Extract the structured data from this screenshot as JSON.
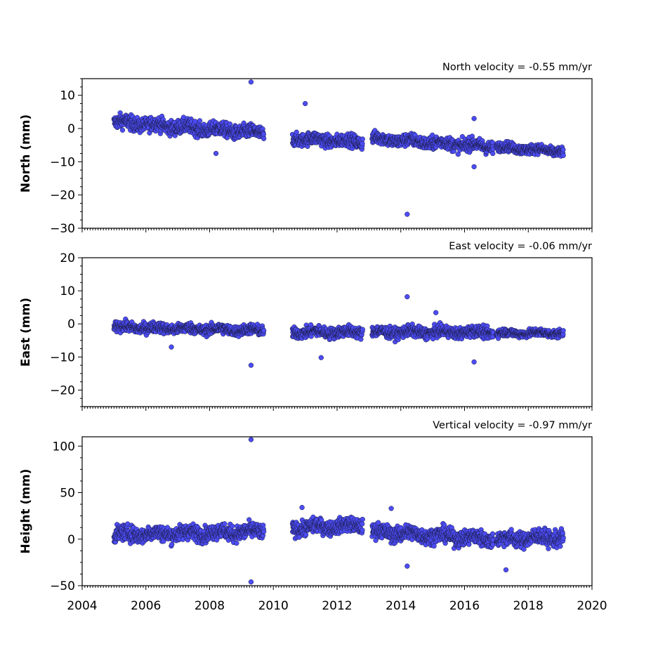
{
  "chart_data": [
    {
      "type": "scatter",
      "title": "North velocity = -0.55 mm/yr",
      "ylabel": "North (mm)",
      "xlim": [
        2004,
        2020
      ],
      "ylim": [
        -30,
        15
      ],
      "yticks": [
        10,
        0,
        -10,
        -20,
        -30
      ],
      "ytick_labels": [
        "10",
        "0",
        "−10",
        "−20",
        "−30"
      ],
      "x_tick_labels_shown": false,
      "color": "#4c4cf5",
      "segments": [
        {
          "x_start": 2005.0,
          "x_end": 2009.7,
          "y_start": 2.0,
          "y_end": -1.5,
          "spread": 1.8
        },
        {
          "x_start": 2010.6,
          "x_end": 2012.8,
          "y_start": -3.0,
          "y_end": -4.0,
          "spread": 1.6
        },
        {
          "x_start": 2013.1,
          "x_end": 2016.9,
          "y_start": -3.0,
          "y_end": -5.5,
          "spread": 1.6
        },
        {
          "x_start": 2017.0,
          "x_end": 2019.1,
          "y_start": -5.5,
          "y_end": -7.0,
          "spread": 1.2
        }
      ],
      "outliers": [
        {
          "x": 2009.3,
          "y": 14.0
        },
        {
          "x": 2011.0,
          "y": 7.5
        },
        {
          "x": 2014.2,
          "y": -25.8
        },
        {
          "x": 2016.3,
          "y": 3.0
        },
        {
          "x": 2016.3,
          "y": -11.5
        },
        {
          "x": 2008.2,
          "y": -7.5
        }
      ]
    },
    {
      "type": "scatter",
      "title": "East velocity = -0.06 mm/yr",
      "ylabel": "East (mm)",
      "xlim": [
        2004,
        2020
      ],
      "ylim": [
        -25,
        20
      ],
      "yticks": [
        20,
        10,
        0,
        -10,
        -20
      ],
      "ytick_labels": [
        "20",
        "10",
        "0",
        "−10",
        "−20"
      ],
      "x_tick_labels_shown": false,
      "color": "#4c4cf5",
      "segments": [
        {
          "x_start": 2005.0,
          "x_end": 2009.7,
          "y_start": -1.0,
          "y_end": -2.0,
          "spread": 1.3
        },
        {
          "x_start": 2010.6,
          "x_end": 2012.8,
          "y_start": -2.5,
          "y_end": -2.5,
          "spread": 1.4
        },
        {
          "x_start": 2013.1,
          "x_end": 2016.9,
          "y_start": -2.5,
          "y_end": -2.5,
          "spread": 1.4
        },
        {
          "x_start": 2017.0,
          "x_end": 2019.1,
          "y_start": -2.8,
          "y_end": -2.8,
          "spread": 1.0
        }
      ],
      "outliers": [
        {
          "x": 2009.3,
          "y": -12.5
        },
        {
          "x": 2011.5,
          "y": -10.2
        },
        {
          "x": 2014.2,
          "y": 8.2
        },
        {
          "x": 2015.1,
          "y": 3.4
        },
        {
          "x": 2016.3,
          "y": -11.5
        },
        {
          "x": 2006.8,
          "y": -7.0
        }
      ]
    },
    {
      "type": "scatter",
      "title": "Vertical velocity = -0.97 mm/yr",
      "ylabel": "Height (mm)",
      "xlim": [
        2004,
        2020
      ],
      "ylim": [
        -50,
        110
      ],
      "yticks": [
        100,
        50,
        0,
        -50
      ],
      "ytick_labels": [
        "100",
        "50",
        "0",
        "−50"
      ],
      "xticks": [
        2004,
        2006,
        2008,
        2010,
        2012,
        2014,
        2016,
        2018,
        2020
      ],
      "xtick_labels": [
        "2004",
        "2006",
        "2008",
        "2010",
        "2012",
        "2014",
        "2016",
        "2018",
        "2020"
      ],
      "x_tick_labels_shown": true,
      "color": "#4c4cf5",
      "segments": [
        {
          "x_start": 2005.0,
          "x_end": 2009.7,
          "y_start": 5.0,
          "y_end": 8.0,
          "spread": 7.0
        },
        {
          "x_start": 2010.6,
          "x_end": 2012.8,
          "y_start": 12.0,
          "y_end": 15.0,
          "spread": 6.5
        },
        {
          "x_start": 2013.1,
          "x_end": 2016.9,
          "y_start": 8.0,
          "y_end": 0.0,
          "spread": 7.0
        },
        {
          "x_start": 2017.0,
          "x_end": 2019.1,
          "y_start": 0.0,
          "y_end": 2.0,
          "spread": 7.0
        }
      ],
      "outliers": [
        {
          "x": 2009.3,
          "y": 107.0
        },
        {
          "x": 2009.3,
          "y": -46.0
        },
        {
          "x": 2014.2,
          "y": -29.0
        },
        {
          "x": 2017.3,
          "y": -33.0
        },
        {
          "x": 2010.9,
          "y": 34.0
        },
        {
          "x": 2013.7,
          "y": 33.0
        }
      ]
    }
  ]
}
